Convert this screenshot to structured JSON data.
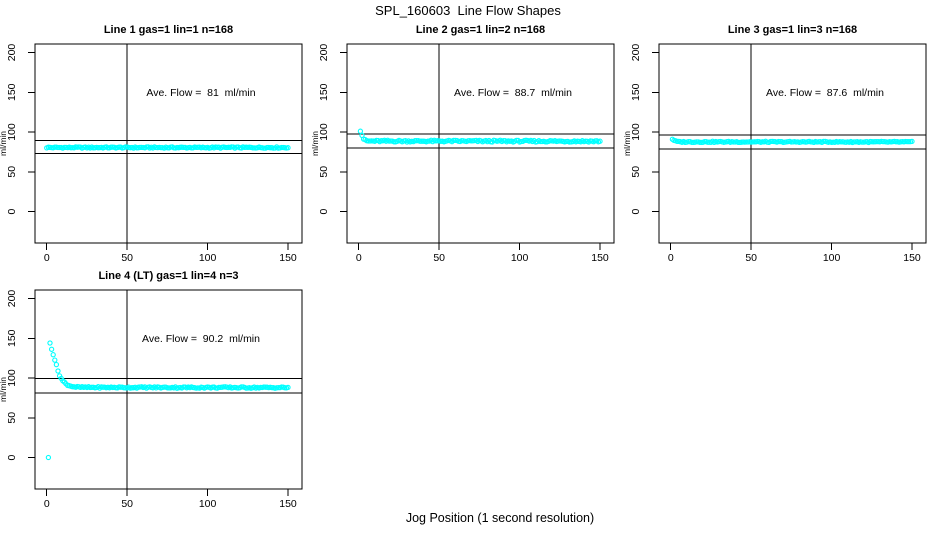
{
  "page": {
    "title": "SPL_160603  Line Flow Shapes",
    "xlabel": "Jog Position (1 second resolution)"
  },
  "colors": {
    "marker": "#00FFFF",
    "axis": "#000000",
    "background": "#FFFFFF"
  },
  "chart_data": [
    {
      "type": "scatter",
      "title": "Line 1 gas=1 lin=1 n=168",
      "annotation": "Ave. Flow =  81  ml/min",
      "ave_flow_ml_min": 81,
      "n_points": 168,
      "ylabel": "ml/min",
      "xticks": [
        0,
        50,
        100,
        150
      ],
      "yticks": [
        0,
        50,
        100,
        150,
        200
      ],
      "xlim": [
        -7.3,
        158.7
      ],
      "ylim": [
        -39.6,
        210.7
      ],
      "vline_x": 50,
      "ref_lines_y": [
        89.1,
        72.9
      ],
      "marker": "open-circle",
      "marker_color": "#00FFFF",
      "series": {
        "name": "flow",
        "prepend_points": [],
        "x_start": 0,
        "x_end": 150,
        "keypoints_x": [
          0,
          150
        ],
        "keypoints_y": [
          80.5,
          80.5
        ],
        "noise": 0.8
      }
    },
    {
      "type": "scatter",
      "title": "Line 2 gas=1 lin=2 n=168",
      "annotation": "Ave. Flow =  88.7  ml/min",
      "ave_flow_ml_min": 88.7,
      "n_points": 168,
      "ylabel": "ml/min",
      "xticks": [
        0,
        50,
        100,
        150
      ],
      "yticks": [
        0,
        50,
        100,
        150,
        200
      ],
      "xlim": [
        -7.3,
        158.7
      ],
      "ylim": [
        -39.6,
        210.7
      ],
      "vline_x": 50,
      "ref_lines_y": [
        97.6,
        79.8
      ],
      "marker": "open-circle",
      "marker_color": "#00FFFF",
      "series": {
        "name": "flow",
        "prepend_points": [],
        "x_start": 1,
        "x_end": 150,
        "keypoints_x": [
          1,
          2,
          3,
          4,
          6,
          150
        ],
        "keypoints_y": [
          102,
          96,
          91.5,
          89.5,
          88.6,
          88.4
        ],
        "noise": 1.1
      }
    },
    {
      "type": "scatter",
      "title": "Line 3 gas=1 lin=3 n=168",
      "annotation": "Ave. Flow =  87.6  ml/min",
      "ave_flow_ml_min": 87.6,
      "n_points": 168,
      "ylabel": "ml/min",
      "xticks": [
        0,
        50,
        100,
        150
      ],
      "yticks": [
        0,
        50,
        100,
        150,
        200
      ],
      "xlim": [
        -7.3,
        158.7
      ],
      "ylim": [
        -39.6,
        210.7
      ],
      "vline_x": 50,
      "ref_lines_y": [
        96.4,
        78.8
      ],
      "marker": "open-circle",
      "marker_color": "#00FFFF",
      "series": {
        "name": "flow",
        "prepend_points": [],
        "x_start": 1,
        "x_end": 150,
        "keypoints_x": [
          1,
          3,
          5,
          150
        ],
        "keypoints_y": [
          91,
          88.4,
          87.6,
          87.5
        ],
        "noise": 0.7
      }
    },
    {
      "type": "scatter",
      "title": "Line 4 (LT) gas=1 lin=4 n=3",
      "annotation": "Ave. Flow =  90.2  ml/min",
      "ave_flow_ml_min": 90.2,
      "n_points": 3,
      "ylabel": "ml/min",
      "xticks": [
        0,
        50,
        100,
        150
      ],
      "yticks": [
        0,
        50,
        100,
        150,
        200
      ],
      "xlim": [
        -7.3,
        158.7
      ],
      "ylim": [
        -39.6,
        210.7
      ],
      "vline_x": 50,
      "ref_lines_y": [
        99.2,
        81.2
      ],
      "marker": "open-circle",
      "marker_color": "#00FFFF",
      "series": {
        "name": "flow",
        "prepend_points": [
          [
            1,
            0
          ]
        ],
        "x_start": 2,
        "x_end": 150,
        "keypoints_x": [
          2,
          3,
          4,
          5,
          6,
          7,
          8,
          9,
          10,
          12,
          14,
          17,
          20,
          25,
          150
        ],
        "keypoints_y": [
          144,
          137,
          130,
          123,
          116,
          109,
          103.5,
          99.5,
          96.5,
          92.5,
          90.5,
          89,
          88.4,
          88.2,
          88
        ],
        "noise": 0.9
      }
    }
  ]
}
